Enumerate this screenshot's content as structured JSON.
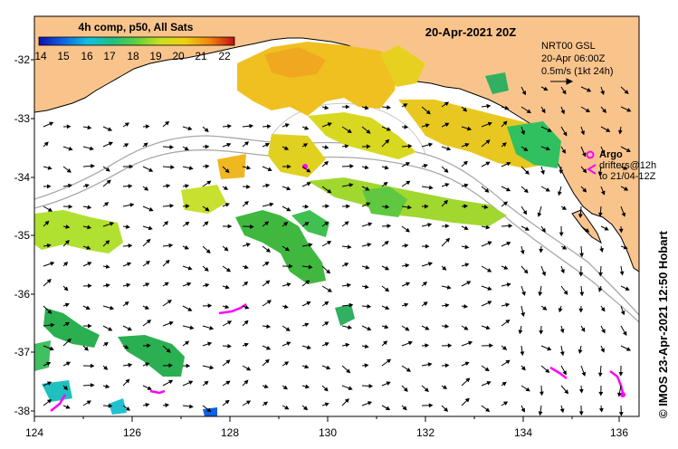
{
  "map": {
    "title": "20-Apr-2021 20Z",
    "colorbar": {
      "title": "4h comp, p50, All Sats",
      "ticks": [
        "14",
        "15",
        "16",
        "17",
        "18",
        "19",
        "20",
        "21",
        "22"
      ],
      "min": 14,
      "max": 22.5
    },
    "info_lines": [
      "NRT00 GSL",
      "20-Apr 06:00Z",
      "0.5m/s (1kt 24h)"
    ],
    "legend": {
      "argo_label": "Argo",
      "drifters_line1": "drifters@12h",
      "drifters_line2": "to 21/04-12Z"
    },
    "credit": "© IMOS 23-Apr-2021 12:50 Hobart",
    "x_ticks": [
      "124",
      "126",
      "128",
      "130",
      "132",
      "134",
      "136"
    ],
    "y_ticks": [
      "-32",
      "-33",
      "-34",
      "-35",
      "-36",
      "-37",
      "-38"
    ],
    "x_range": [
      124,
      136.6
    ],
    "y_range": [
      -38.05,
      -31.5
    ],
    "colors": {
      "land": "#f9c48c",
      "sea": "#ffffff",
      "argo": "#ff00ff",
      "bathymetry": "#a8a8a8"
    }
  }
}
